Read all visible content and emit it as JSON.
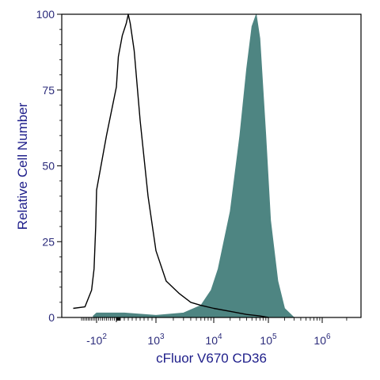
{
  "chart_data": {
    "type": "area",
    "xlabel": "cFluor V670 CD36",
    "ylabel": "Relative Cell Number",
    "x_scale": "biexponential",
    "ylim": [
      0,
      100
    ],
    "y_ticks": [
      "0",
      "25",
      "50",
      "75",
      "100"
    ],
    "x_ticks": [
      {
        "base": "-10",
        "exp": "2",
        "value": -100
      },
      {
        "base": "10",
        "exp": "3",
        "value": 1000
      },
      {
        "base": "10",
        "exp": "4",
        "value": 10000
      },
      {
        "base": "10",
        "exp": "5",
        "value": 100000
      },
      {
        "base": "10",
        "exp": "6",
        "value": 1000000
      }
    ],
    "grid": false,
    "series": [
      {
        "style": "outline",
        "color": "#000000",
        "points": [
          [
            -1500,
            3
          ],
          [
            -800,
            3.5
          ],
          [
            -400,
            9
          ],
          [
            -250,
            16
          ],
          [
            -150,
            30
          ],
          [
            -100,
            42
          ],
          [
            -50,
            60
          ],
          [
            0,
            76
          ],
          [
            50,
            86
          ],
          [
            150,
            93
          ],
          [
            250,
            97
          ],
          [
            300,
            100
          ],
          [
            350,
            97
          ],
          [
            450,
            88
          ],
          [
            600,
            65
          ],
          [
            800,
            40
          ],
          [
            1000,
            22
          ],
          [
            1500,
            12
          ],
          [
            2500,
            8
          ],
          [
            4000,
            5
          ],
          [
            6000,
            4
          ],
          [
            10000,
            3
          ],
          [
            20000,
            2
          ],
          [
            40000,
            1
          ],
          [
            70000,
            0.5
          ],
          [
            100000,
            0
          ]
        ]
      },
      {
        "style": "filled",
        "color": "#4e8582",
        "points": [
          [
            -300,
            0.5
          ],
          [
            -100,
            1.5
          ],
          [
            200,
            1.5
          ],
          [
            1000,
            0.7
          ],
          [
            3000,
            1.5
          ],
          [
            6000,
            4
          ],
          [
            9000,
            9
          ],
          [
            12000,
            16
          ],
          [
            20000,
            35
          ],
          [
            30000,
            60
          ],
          [
            40000,
            82
          ],
          [
            50000,
            96
          ],
          [
            60000,
            100
          ],
          [
            70000,
            92
          ],
          [
            90000,
            60
          ],
          [
            110000,
            32
          ],
          [
            150000,
            12
          ],
          [
            200000,
            3
          ],
          [
            300000,
            0
          ]
        ]
      }
    ]
  }
}
